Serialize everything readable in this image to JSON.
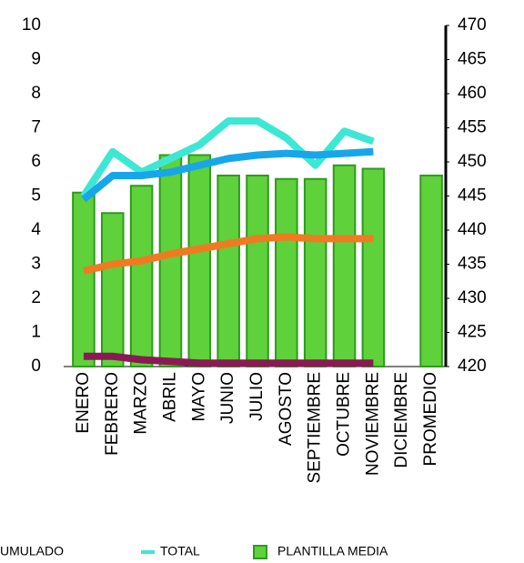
{
  "chart_data": {
    "type": "bar",
    "categories": [
      "ENERO",
      "FEBRERO",
      "MARZO",
      "ABRIL",
      "MAYO",
      "JUNIO",
      "JULIO",
      "AGOSTO",
      "SEPTIEMBRE",
      "OCTUBRE",
      "NOVIEMBRE",
      "DICIEMBRE",
      "PROMEDIO"
    ],
    "series": [
      {
        "name": "PLANTILLA MEDIA",
        "type": "bar",
        "color": "#5fd13a",
        "values": [
          5.1,
          4.5,
          5.3,
          6.2,
          6.2,
          5.6,
          5.6,
          5.5,
          5.5,
          5.9,
          5.8,
          null,
          5.6
        ]
      },
      {
        "name": "TOTAL",
        "type": "line",
        "color": "#3ce8d4",
        "values": [
          5.0,
          6.3,
          5.7,
          6.1,
          6.5,
          7.2,
          7.2,
          6.7,
          5.9,
          6.9,
          6.6,
          null,
          null
        ]
      },
      {
        "type": "line",
        "color": "#17a6ea",
        "values": [
          4.9,
          5.6,
          5.6,
          5.7,
          5.9,
          6.1,
          6.2,
          6.25,
          6.2,
          6.25,
          6.3,
          null,
          null
        ]
      },
      {
        "type": "line",
        "color": "#f07a22",
        "values": [
          2.8,
          3.0,
          3.1,
          3.3,
          3.45,
          3.6,
          3.75,
          3.8,
          3.75,
          3.75,
          3.75,
          null,
          null
        ]
      },
      {
        "name": "UMULADO",
        "type": "line",
        "color": "#8a1a55",
        "values": [
          0.3,
          0.3,
          0.2,
          0.15,
          0.1,
          0.1,
          0.1,
          0.1,
          0.1,
          0.1,
          0.1,
          null,
          null
        ]
      }
    ],
    "ylim": [
      0,
      10
    ],
    "yticks": [
      0,
      1,
      2,
      3,
      4,
      5,
      6,
      7,
      8,
      9,
      10
    ],
    "y2lim": [
      420,
      470
    ],
    "y2ticks": [
      420,
      425,
      430,
      435,
      440,
      445,
      450,
      455,
      460,
      465,
      470
    ]
  }
}
